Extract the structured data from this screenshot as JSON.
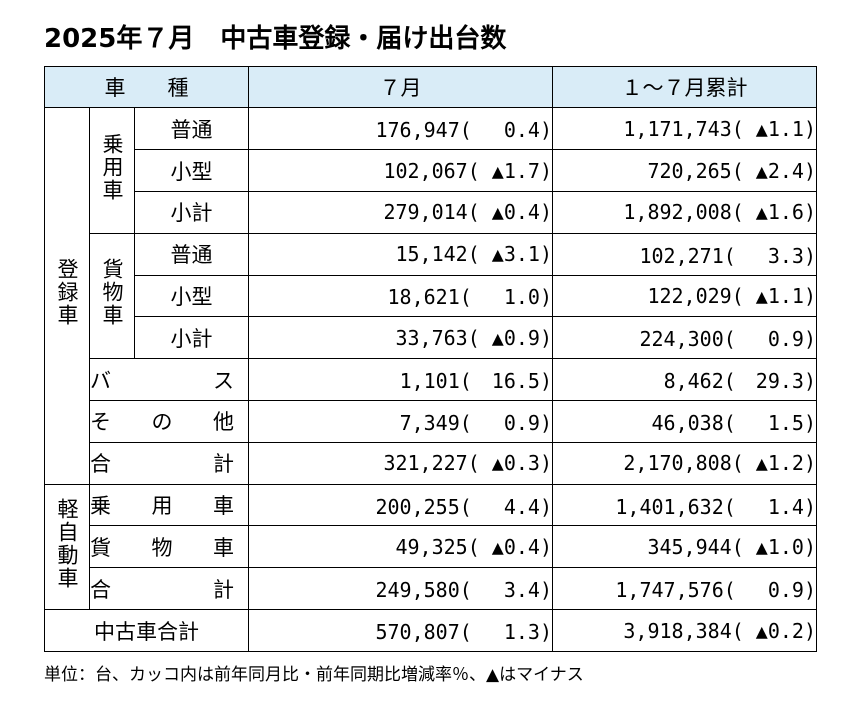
{
  "title": "2025年７月　中古車登録・届け出台数",
  "header": {
    "type": "車　　種",
    "month": "７月",
    "cumulative": "１～７月累計"
  },
  "groups": {
    "registered": "登録車",
    "passenger": "乗用車",
    "cargo": "貨物車",
    "kei": "軽自動車"
  },
  "rows": [
    {
      "label": "普通",
      "m": "176,947(　 0.4)",
      "c": "1,171,743( ▲1.1)"
    },
    {
      "label": "小型",
      "m": "102,067( ▲1.7)",
      "c": "720,265( ▲2.4)"
    },
    {
      "label": "小計",
      "m": "279,014( ▲0.4)",
      "c": "1,892,008( ▲1.6)"
    },
    {
      "label": "普通",
      "m": "15,142( ▲3.1)",
      "c": "102,271(　 3.3)"
    },
    {
      "label": "小型",
      "m": "18,621(　 1.0)",
      "c": "122,029( ▲1.1)"
    },
    {
      "label": "小計",
      "m": "33,763( ▲0.9)",
      "c": "224,300(　 0.9)"
    },
    {
      "label": "バス",
      "m": "1,101(　16.5)",
      "c": "8,462(　29.3)"
    },
    {
      "label": "その他",
      "m": "7,349(　 0.9)",
      "c": "46,038(　 1.5)"
    },
    {
      "label": "合計",
      "m": "321,227( ▲0.3)",
      "c": "2,170,808( ▲1.2)"
    },
    {
      "label": "乗用車",
      "m": "200,255(　 4.4)",
      "c": "1,401,632(　 1.4)"
    },
    {
      "label": "貨物車",
      "m": "49,325( ▲0.4)",
      "c": "345,944( ▲1.0)"
    },
    {
      "label": "合計",
      "m": "249,580(　 3.4)",
      "c": "1,747,576(　 0.9)"
    },
    {
      "label": "中古車合計",
      "m": "570,807(　 1.3)",
      "c": "3,918,384( ▲0.2)"
    }
  ],
  "note": "単位：台、カッコ内は前年同月比・前年同期比増減率％、▲はマイナス",
  "colors": {
    "header_bg": "#d9ecf7"
  }
}
